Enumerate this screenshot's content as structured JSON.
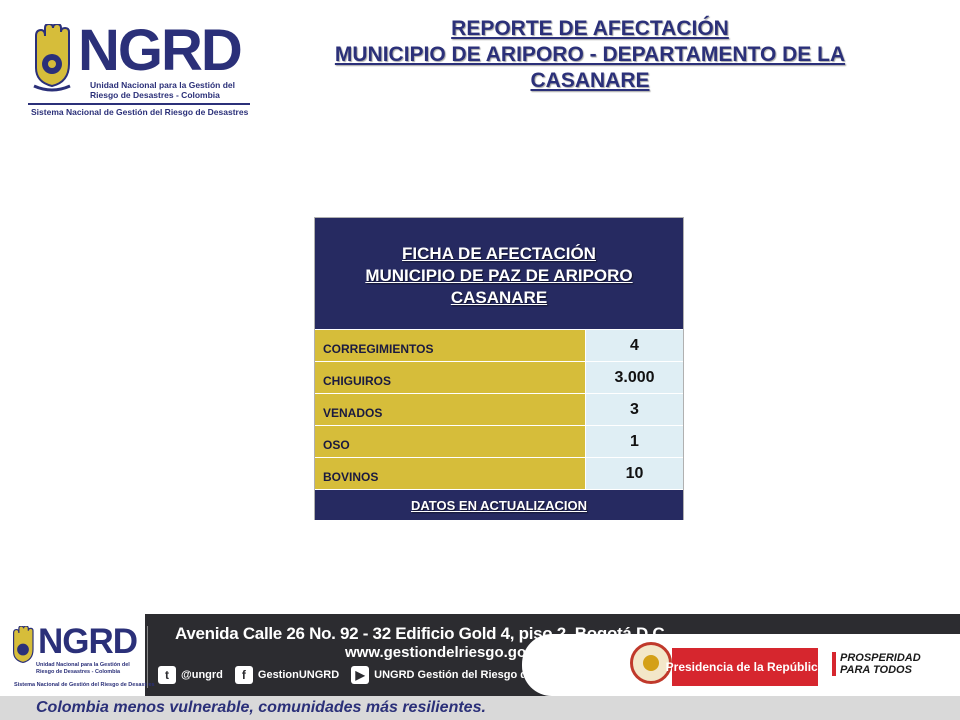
{
  "logo": {
    "brand": "NGRD",
    "subtitle_line1": "Unidad Nacional para la Gestión del",
    "subtitle_line2": "Riesgo de Desastres - Colombia",
    "system_name": "Sistema Nacional de Gestión del Riesgo de Desastres"
  },
  "title": {
    "line1": "REPORTE DE AFECTACIÓN",
    "line2": "MUNICIPIO DE ARIPORO - DEPARTAMENTO DE LA",
    "line3": "CASANARE"
  },
  "card": {
    "head_line1": "FICHA DE AFECTACIÓN",
    "head_line2": "MUNICIPIO DE PAZ DE ARIPORO",
    "head_line3": "CASANARE",
    "rows": [
      {
        "label": "CORREGIMIENTOS",
        "value": "4"
      },
      {
        "label": "CHIGUIROS",
        "value": "3.000"
      },
      {
        "label": "VENADOS",
        "value": "3"
      },
      {
        "label": "OSO",
        "value": "1"
      },
      {
        "label": "BOVINOS",
        "value": "10"
      }
    ],
    "footer": "DATOS EN ACTUALIZACION"
  },
  "footer": {
    "brand": "NGRD",
    "subtitle_line1": "Unidad Nacional para la Gestión del",
    "subtitle_line2": "Riesgo de Desastres - Colombia",
    "system_name": "Sistema Nacional de Gestión del Riesgo de Desastres",
    "address": "Avenida Calle 26 No. 92 - 32 Edificio Gold 4, piso 2, Bogotá D.C",
    "website": "www.gestiondelriesgo.gov.co",
    "twitter": "@ungrd",
    "facebook": "GestionUNGRD",
    "youtube": "UNGRD Gestión del Riesgo de Desastres",
    "presidencia": "Presidencia de la República",
    "prosperidad_line1": "PROSPERIDAD",
    "prosperidad_line2": "PARA TODOS",
    "slogan": "Colombia menos vulnerable, comunidades más resilientes."
  },
  "colors": {
    "navy": "#262a61",
    "brand_blue": "#2b3079",
    "gold": "#d6bd3a",
    "value_bg": "#dfeef4",
    "red": "#d6262e"
  }
}
